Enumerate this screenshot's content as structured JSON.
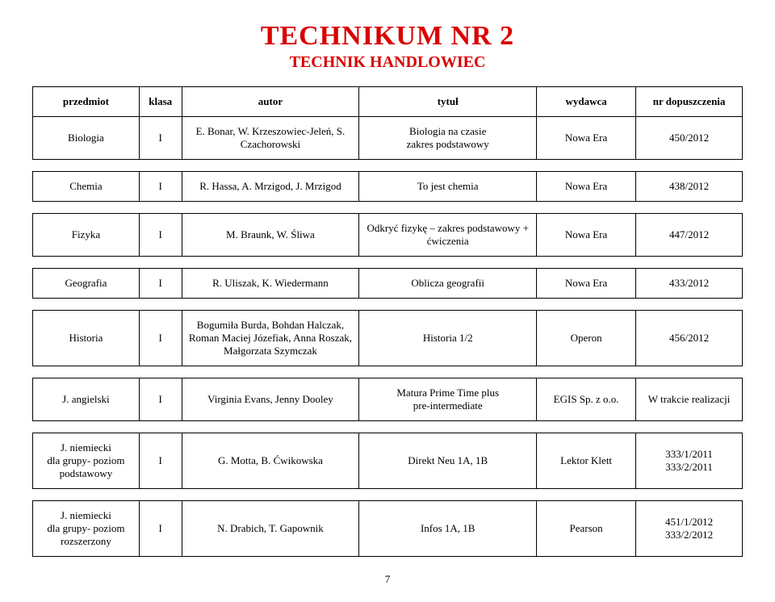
{
  "header": {
    "title": "TECHNIKUM  NR  2",
    "subtitle": "TECHNIK HANDLOWIEC"
  },
  "table": {
    "columns": [
      "przedmiot",
      "klasa",
      "autor",
      "tytuł",
      "wydawca",
      "nr dopuszczenia"
    ]
  },
  "rows": [
    {
      "przedmiot": "Biologia",
      "klasa": "I",
      "autor": "E. Bonar, W. Krzeszowiec-Jeleń, S. Czachorowski",
      "tytul": "Biologia na czasie\nzakres podstawowy",
      "wydawca": "Nowa Era",
      "nr": "450/2012"
    },
    {
      "przedmiot": "Chemia",
      "klasa": "I",
      "autor": "R. Hassa, A. Mrzigod, J. Mrzigod",
      "tytul": "To jest chemia",
      "wydawca": "Nowa Era",
      "nr": "438/2012"
    },
    {
      "przedmiot": "Fizyka",
      "klasa": "I",
      "autor": "M. Braunk, W. Śliwa",
      "tytul": "Odkryć fizykę – zakres podstawowy + ćwiczenia",
      "wydawca": "Nowa Era",
      "nr": "447/2012"
    },
    {
      "przedmiot": "Geografia",
      "klasa": "I",
      "autor": "R. Uliszak, K. Wiedermann",
      "tytul": "Oblicza geografii",
      "wydawca": "Nowa Era",
      "nr": "433/2012"
    },
    {
      "przedmiot": "Historia",
      "klasa": "I",
      "autor": "Bogumiła Burda, Bohdan Halczak, Roman Maciej Józefiak, Anna Roszak, Małgorzata Szymczak",
      "tytul": "Historia 1/2",
      "wydawca": "Operon",
      "nr": "456/2012"
    },
    {
      "przedmiot": "J. angielski",
      "klasa": "I",
      "autor": "Virginia Evans, Jenny Dooley",
      "tytul": "Matura Prime Time plus\npre-intermediate",
      "wydawca": "EGIS Sp. z o.o.",
      "nr": "W trakcie realizacji"
    },
    {
      "przedmiot": "J. niemiecki\ndla grupy- poziom podstawowy",
      "klasa": "I",
      "autor": "G. Motta, B. Ćwikowska",
      "tytul": "Direkt Neu 1A, 1B",
      "wydawca": "Lektor Klett",
      "nr": "333/1/2011\n333/2/2011"
    },
    {
      "przedmiot": "J. niemiecki\ndla grupy- poziom rozszerzony",
      "klasa": "I",
      "autor": "N. Drabich, T. Gapownik",
      "tytul": "Infos 1A, 1B",
      "wydawca": "Pearson",
      "nr": "451/1/2012\n333/2/2012"
    }
  ],
  "page_number": "7"
}
